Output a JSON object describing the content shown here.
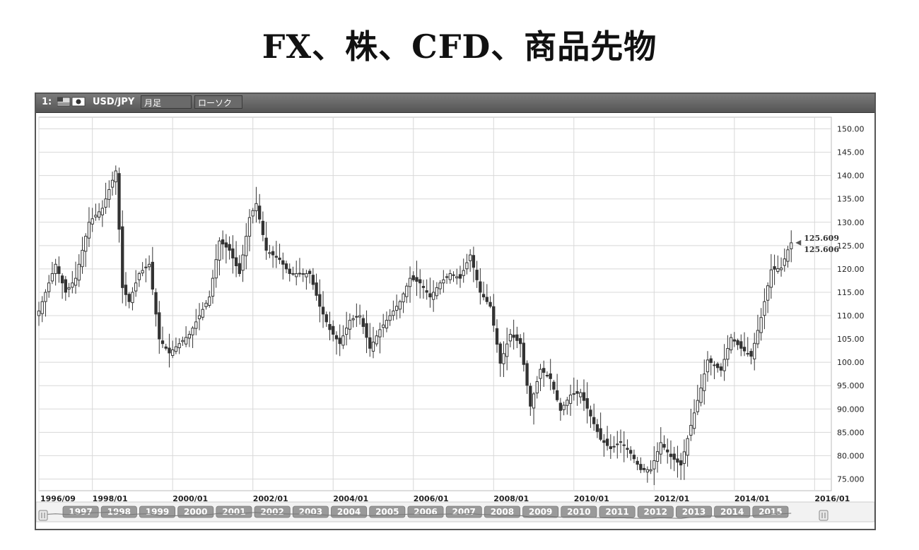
{
  "page_title": "FX、株、CFD、商品先物",
  "window": {
    "index_label": "1:",
    "symbol": "USD/JPY",
    "period": "月足",
    "chart_type_label": "ローソク"
  },
  "colors": {
    "candle": "#333333",
    "grid": "#d8d8d8",
    "titlebar": "#666666",
    "navigator_pill": "#9a9a9a"
  },
  "navigator": {
    "years": [
      "1997",
      "1998",
      "1999",
      "2000",
      "2001",
      "2002",
      "2003",
      "2004",
      "2005",
      "2006",
      "2007",
      "2008",
      "2009",
      "2010",
      "2011",
      "2012",
      "2013",
      "2014",
      "2015"
    ]
  },
  "chart_data": {
    "type": "candlestick",
    "title": "",
    "xlabel": "",
    "ylabel": "",
    "x_range": [
      "1996-09",
      "2016-06"
    ],
    "ylim": [
      72.5,
      152.5
    ],
    "y_ticks": [
      "150.00",
      "145.00",
      "140.00",
      "135.00",
      "130.00",
      "125.00",
      "120.00",
      "115.00",
      "110.00",
      "105.00",
      "100.00",
      "95.000",
      "90.000",
      "85.000",
      "80.000",
      "75.000"
    ],
    "x_tick_labels": [
      "1996/09",
      "1998/01",
      "2000/01",
      "2002/01",
      "2004/01",
      "2006/01",
      "2008/01",
      "2010/01",
      "2012/01",
      "2014/01",
      "2016/01"
    ],
    "grid": true,
    "last_price_labels": [
      "125.609",
      "125.606"
    ],
    "monthly_close_anchors": [
      [
        "1996-09",
        111
      ],
      [
        "1997-02",
        121
      ],
      [
        "1997-05",
        115
      ],
      [
        "1997-08",
        118
      ],
      [
        "1997-12",
        130
      ],
      [
        "1998-04",
        133
      ],
      [
        "1998-08",
        141
      ],
      [
        "1998-10",
        116
      ],
      [
        "1998-12",
        113
      ],
      [
        "1999-03",
        119
      ],
      [
        "1999-06",
        121
      ],
      [
        "1999-09",
        105
      ],
      [
        "1999-12",
        102
      ],
      [
        "2000-06",
        106
      ],
      [
        "2000-12",
        114
      ],
      [
        "2001-03",
        126
      ],
      [
        "2001-06",
        124
      ],
      [
        "2001-09",
        119
      ],
      [
        "2001-12",
        131
      ],
      [
        "2002-02",
        134
      ],
      [
        "2002-05",
        124
      ],
      [
        "2002-09",
        122
      ],
      [
        "2002-12",
        119
      ],
      [
        "2003-06",
        119
      ],
      [
        "2003-09",
        112
      ],
      [
        "2003-12",
        107
      ],
      [
        "2004-03",
        104
      ],
      [
        "2004-06",
        109
      ],
      [
        "2004-09",
        110
      ],
      [
        "2004-12",
        103
      ],
      [
        "2005-03",
        107
      ],
      [
        "2005-06",
        110
      ],
      [
        "2005-09",
        113
      ],
      [
        "2005-12",
        118
      ],
      [
        "2006-03",
        117
      ],
      [
        "2006-06",
        114
      ],
      [
        "2006-09",
        117
      ],
      [
        "2006-12",
        119
      ],
      [
        "2007-03",
        118
      ],
      [
        "2007-06",
        123
      ],
      [
        "2007-09",
        115
      ],
      [
        "2007-12",
        112
      ],
      [
        "2008-03",
        99.8
      ],
      [
        "2008-06",
        106
      ],
      [
        "2008-09",
        104
      ],
      [
        "2008-12",
        90.6
      ],
      [
        "2009-03",
        98.5
      ],
      [
        "2009-06",
        96.5
      ],
      [
        "2009-09",
        89.7
      ],
      [
        "2009-12",
        93
      ],
      [
        "2010-03",
        93.5
      ],
      [
        "2010-06",
        88.5
      ],
      [
        "2010-09",
        83.5
      ],
      [
        "2010-12",
        81.5
      ],
      [
        "2011-03",
        83
      ],
      [
        "2011-06",
        80.5
      ],
      [
        "2011-09",
        77
      ],
      [
        "2011-12",
        77
      ],
      [
        "2012-03",
        82.8
      ],
      [
        "2012-06",
        79.8
      ],
      [
        "2012-09",
        78
      ],
      [
        "2012-12",
        86.5
      ],
      [
        "2013-03",
        94.5
      ],
      [
        "2013-05",
        100.5
      ],
      [
        "2013-09",
        98.3
      ],
      [
        "2013-12",
        105.3
      ],
      [
        "2014-03",
        103
      ],
      [
        "2014-06",
        101.3
      ],
      [
        "2014-09",
        109.6
      ],
      [
        "2014-12",
        119.8
      ],
      [
        "2015-03",
        120.2
      ],
      [
        "2015-05",
        124.1
      ],
      [
        "2015-06",
        125.6
      ]
    ]
  }
}
